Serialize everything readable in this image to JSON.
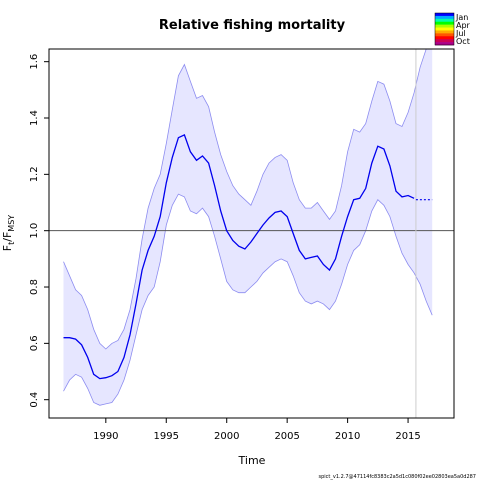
{
  "chart_data": {
    "type": "line",
    "title": "Relative fishing mortality",
    "xlabel": "Time",
    "ylabel": {
      "main": "F",
      "sub1": "t",
      "mid": "/F",
      "sub2": "MSY"
    },
    "xlim": [
      1985.3,
      2018.8
    ],
    "ylim": [
      0.335,
      1.645
    ],
    "x_ticks": [
      1990,
      1995,
      2000,
      2005,
      2010,
      2015
    ],
    "y_ticks": [
      0.4,
      0.6,
      0.8,
      1.0,
      1.2,
      1.4,
      1.6
    ],
    "reference_line": 1.0,
    "vertical_marker": 2015.65,
    "colors": {
      "line": "#0000ee",
      "band_fill": "#e6e6ff",
      "band_edge": "#8c8cf0",
      "reference_line": "#555555",
      "marker_line": "#cccccc"
    },
    "series": [
      {
        "role": "estimate",
        "x": [
          1986.5,
          1987,
          1987.5,
          1988,
          1988.5,
          1989,
          1989.5,
          1990,
          1990.5,
          1991,
          1991.5,
          1992,
          1992.5,
          1993,
          1993.5,
          1994,
          1994.5,
          1995,
          1995.5,
          1996,
          1996.5,
          1997,
          1997.5,
          1998,
          1998.5,
          1999,
          1999.5,
          2000,
          2000.5,
          2001,
          2001.5,
          2002,
          2002.5,
          2003,
          2003.5,
          2004,
          2004.5,
          2005,
          2005.5,
          2006,
          2006.5,
          2007,
          2007.5,
          2008,
          2008.5,
          2009,
          2009.5,
          2010,
          2010.5,
          2011,
          2011.5,
          2012,
          2012.5,
          2013,
          2013.5,
          2014,
          2014.5,
          2015,
          2015.5
        ],
        "values": [
          0.62,
          0.62,
          0.615,
          0.595,
          0.55,
          0.49,
          0.475,
          0.478,
          0.485,
          0.5,
          0.55,
          0.63,
          0.74,
          0.86,
          0.93,
          0.98,
          1.05,
          1.17,
          1.26,
          1.33,
          1.34,
          1.28,
          1.25,
          1.265,
          1.24,
          1.16,
          1.07,
          1.0,
          0.965,
          0.945,
          0.935,
          0.96,
          0.99,
          1.02,
          1.045,
          1.065,
          1.07,
          1.05,
          0.99,
          0.93,
          0.9,
          0.905,
          0.91,
          0.88,
          0.86,
          0.9,
          0.98,
          1.05,
          1.11,
          1.115,
          1.15,
          1.24,
          1.3,
          1.29,
          1.23,
          1.14,
          1.12,
          1.125,
          1.115
        ]
      },
      {
        "role": "forecast",
        "x": [
          2015.65,
          2016,
          2016.5,
          2017
        ],
        "values": [
          1.11,
          1.11,
          1.11,
          1.11
        ]
      },
      {
        "role": "upper",
        "x": [
          1986.5,
          1987,
          1987.5,
          1988,
          1988.5,
          1989,
          1989.5,
          1990,
          1990.5,
          1991,
          1991.5,
          1992,
          1992.5,
          1993,
          1993.5,
          1994,
          1994.5,
          1995,
          1995.5,
          1996,
          1996.5,
          1997,
          1997.5,
          1998,
          1998.5,
          1999,
          1999.5,
          2000,
          2000.5,
          2001,
          2001.5,
          2002,
          2002.5,
          2003,
          2003.5,
          2004,
          2004.5,
          2005,
          2005.5,
          2006,
          2006.5,
          2007,
          2007.5,
          2008,
          2008.5,
          2009,
          2009.5,
          2010,
          2010.5,
          2011,
          2011.5,
          2012,
          2012.5,
          2013,
          2013.5,
          2014,
          2014.5,
          2015,
          2015.5,
          2016,
          2016.5,
          2017
        ],
        "values": [
          0.89,
          0.84,
          0.79,
          0.77,
          0.72,
          0.65,
          0.6,
          0.58,
          0.6,
          0.61,
          0.65,
          0.72,
          0.83,
          0.97,
          1.08,
          1.15,
          1.2,
          1.31,
          1.43,
          1.55,
          1.59,
          1.53,
          1.47,
          1.48,
          1.44,
          1.35,
          1.27,
          1.21,
          1.16,
          1.13,
          1.11,
          1.09,
          1.14,
          1.2,
          1.24,
          1.26,
          1.27,
          1.25,
          1.17,
          1.11,
          1.08,
          1.08,
          1.1,
          1.07,
          1.04,
          1.07,
          1.16,
          1.28,
          1.36,
          1.35,
          1.38,
          1.46,
          1.53,
          1.52,
          1.46,
          1.38,
          1.37,
          1.42,
          1.49,
          1.58,
          1.65,
          1.68
        ]
      },
      {
        "role": "lower",
        "x": [
          1986.5,
          1987,
          1987.5,
          1988,
          1988.5,
          1989,
          1989.5,
          1990,
          1990.5,
          1991,
          1991.5,
          1992,
          1992.5,
          1993,
          1993.5,
          1994,
          1994.5,
          1995,
          1995.5,
          1996,
          1996.5,
          1997,
          1997.5,
          1998,
          1998.5,
          1999,
          1999.5,
          2000,
          2000.5,
          2001,
          2001.5,
          2002,
          2002.5,
          2003,
          2003.5,
          2004,
          2004.5,
          2005,
          2005.5,
          2006,
          2006.5,
          2007,
          2007.5,
          2008,
          2008.5,
          2009,
          2009.5,
          2010,
          2010.5,
          2011,
          2011.5,
          2012,
          2012.5,
          2013,
          2013.5,
          2014,
          2014.5,
          2015,
          2015.5,
          2016,
          2016.5,
          2017
        ],
        "values": [
          0.43,
          0.47,
          0.49,
          0.48,
          0.44,
          0.39,
          0.38,
          0.385,
          0.39,
          0.42,
          0.47,
          0.54,
          0.63,
          0.72,
          0.77,
          0.8,
          0.89,
          1.02,
          1.09,
          1.13,
          1.12,
          1.07,
          1.06,
          1.08,
          1.05,
          0.98,
          0.9,
          0.82,
          0.79,
          0.78,
          0.78,
          0.8,
          0.82,
          0.85,
          0.87,
          0.89,
          0.9,
          0.89,
          0.84,
          0.78,
          0.75,
          0.74,
          0.75,
          0.74,
          0.72,
          0.75,
          0.81,
          0.88,
          0.93,
          0.95,
          1.0,
          1.07,
          1.11,
          1.09,
          1.05,
          0.98,
          0.92,
          0.88,
          0.85,
          0.81,
          0.75,
          0.7
        ]
      }
    ],
    "legend": {
      "labels": [
        "Jan",
        "Apr",
        "Jul",
        "Oct"
      ],
      "colors": [
        "#0000ff",
        "#00aaff",
        "#00ffaa",
        "#00ff00",
        "#aaff00",
        "#ffff00",
        "#ffaa00",
        "#ff5500",
        "#ff0000",
        "#cc0055",
        "#aa0088"
      ]
    },
    "footer": "spict_v1.2.7@47114fc8383c2a5d1c080f02ee02803ea5a0d287"
  }
}
